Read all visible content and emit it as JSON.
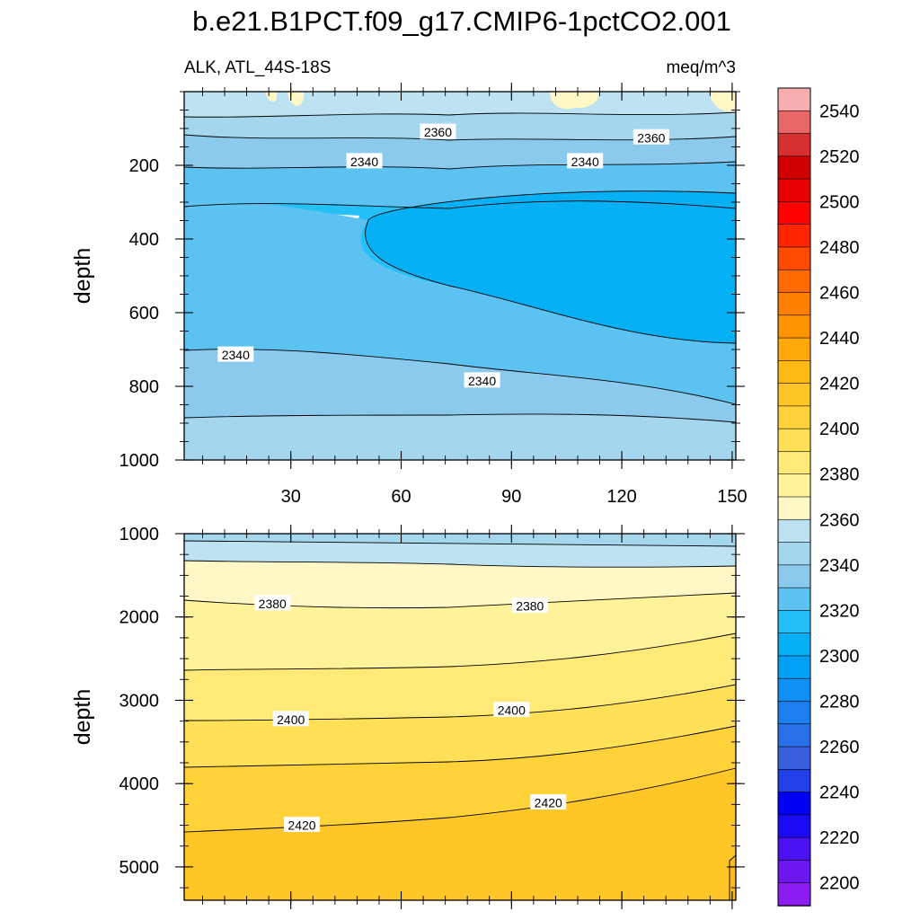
{
  "chart_data": {
    "type": "contour",
    "title": "b.e21.B1PCT.f09_g17.CMIP6-1pctCO2.001",
    "subtitle_left": "ALK, ATL_44S-18S",
    "subtitle_right": "meq/m^3",
    "xlabel": "",
    "ylabel": "depth",
    "x_ticks": [
      "30",
      "60",
      "90",
      "120",
      "150"
    ],
    "x_tick_values": [
      30,
      60,
      90,
      120,
      150
    ],
    "xlim": [
      1,
      151
    ],
    "panels": [
      {
        "name": "upper",
        "ylim": [
          0,
          1000
        ],
        "y_ticks": [
          "200",
          "400",
          "600",
          "800",
          "1000"
        ],
        "y_tick_values": [
          200,
          400,
          600,
          800,
          1000
        ],
        "contour_labels": [
          {
            "text": "2360",
            "x": 70,
            "y": 110
          },
          {
            "text": "2360",
            "x": 128,
            "y": 125
          },
          {
            "text": "2340",
            "x": 50,
            "y": 190
          },
          {
            "text": "2340",
            "x": 110,
            "y": 190
          },
          {
            "text": "2340",
            "x": 15,
            "y": 715
          },
          {
            "text": "2340",
            "x": 82,
            "y": 785
          }
        ]
      },
      {
        "name": "lower",
        "ylim": [
          1000,
          5400
        ],
        "y_ticks": [
          "1000",
          "2000",
          "3000",
          "4000",
          "5000"
        ],
        "y_tick_values": [
          1000,
          2000,
          3000,
          4000,
          5000
        ],
        "contour_labels": [
          {
            "text": "2380",
            "x": 25,
            "y": 1840
          },
          {
            "text": "2380",
            "x": 95,
            "y": 1870
          },
          {
            "text": "2400",
            "x": 30,
            "y": 3230
          },
          {
            "text": "2400",
            "x": 90,
            "y": 3120
          },
          {
            "text": "2420",
            "x": 33,
            "y": 4500
          },
          {
            "text": "2420",
            "x": 100,
            "y": 4230
          }
        ]
      }
    ],
    "colorbar": {
      "tick_labels": [
        "2200",
        "2220",
        "2240",
        "2260",
        "2280",
        "2300",
        "2320",
        "2340",
        "2360",
        "2380",
        "2400",
        "2420",
        "2440",
        "2460",
        "2480",
        "2500",
        "2520",
        "2540"
      ],
      "colors": [
        "#8c1cf0",
        "#6a17f0",
        "#4a12f2",
        "#1a0af5",
        "#0000f5",
        "#2240e8",
        "#3a60e0",
        "#2a70e8",
        "#1c7ff0",
        "#1090f5",
        "#00a0f5",
        "#06b0f5",
        "#26c0f8",
        "#5cc2f2",
        "#8ccaed",
        "#a4d6ee",
        "#bde2f2",
        "#fff8c6",
        "#fff39a",
        "#ffea78",
        "#ffe056",
        "#ffd23a",
        "#ffc628",
        "#ffb914",
        "#ffa808",
        "#ff9400",
        "#ff8000",
        "#ff6a00",
        "#ff4a00",
        "#ff2600",
        "#ff0000",
        "#e80000",
        "#d00000",
        "#d83030",
        "#e86868",
        "#f6aeae"
      ]
    }
  }
}
